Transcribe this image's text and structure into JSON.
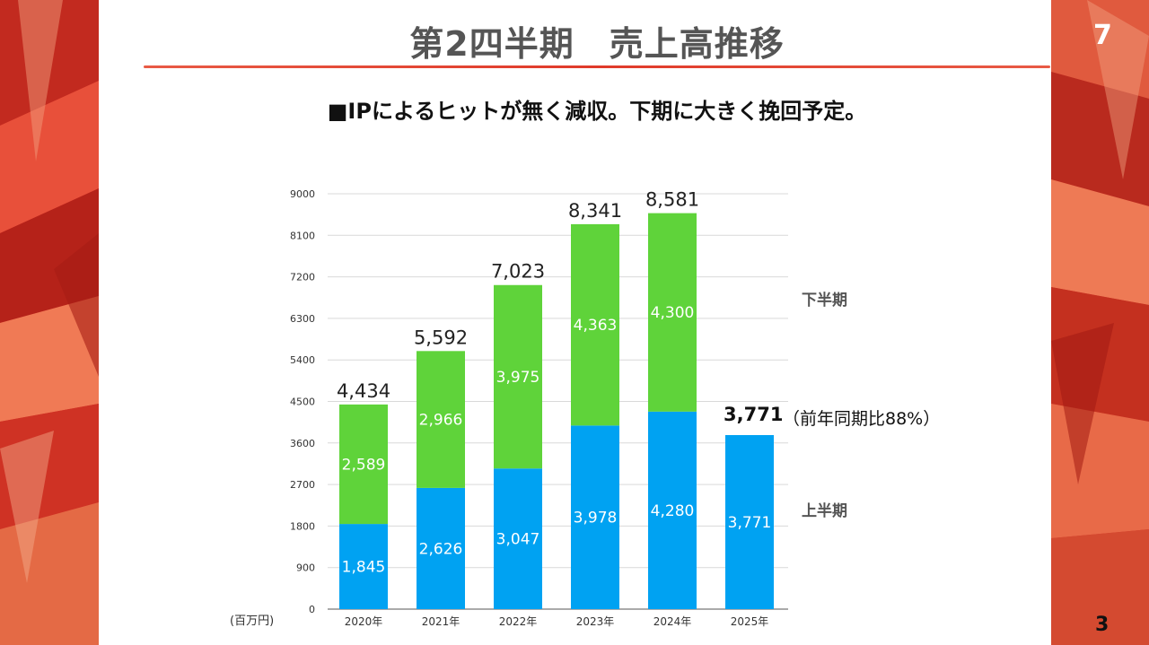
{
  "slide": {
    "title": "第2四半期　売上高推移",
    "subtitle": "■IPによるヒットが無く減収。下期に大きく挽回予定。",
    "slide_number": "7",
    "page_number": "3"
  },
  "annotations": {
    "unit": "(百万円)",
    "latest_total": "3,771",
    "latest_note": "（前年同期比88%）",
    "lower_series_label": "上半期",
    "upper_series_label": "下半期"
  },
  "colors": {
    "first_half": "#00a2f2",
    "second_half": "#5fd33a",
    "grid": "#d9d9d9",
    "accent": "#e03a2a"
  },
  "chart_data": {
    "type": "bar",
    "stacked": true,
    "categories": [
      "2020年",
      "2021年",
      "2022年",
      "2023年",
      "2024年",
      "2025年"
    ],
    "series": [
      {
        "name": "上半期",
        "values": [
          1845,
          2626,
          3047,
          3978,
          4280,
          3771
        ],
        "labels": [
          "1,845",
          "2,626",
          "3,047",
          "3,978",
          "4,280",
          "3,771"
        ]
      },
      {
        "name": "下半期",
        "values": [
          2589,
          2966,
          3975,
          4363,
          4300,
          null
        ],
        "labels": [
          "2,589",
          "2,966",
          "3,975",
          "4,363",
          "4,300",
          ""
        ]
      }
    ],
    "totals": [
      4434,
      5592,
      7023,
      8341,
      8581,
      null
    ],
    "total_labels": [
      "4,434",
      "5,592",
      "7,023",
      "8,341",
      "8,581",
      ""
    ],
    "yticks": [
      "0",
      "900",
      "1800",
      "2700",
      "3600",
      "4500",
      "5400",
      "6300",
      "7200",
      "8100",
      "9000"
    ],
    "ylim": [
      0,
      9000
    ],
    "grid": true,
    "legend": "right",
    "xlabel": "",
    "ylabel": ""
  }
}
